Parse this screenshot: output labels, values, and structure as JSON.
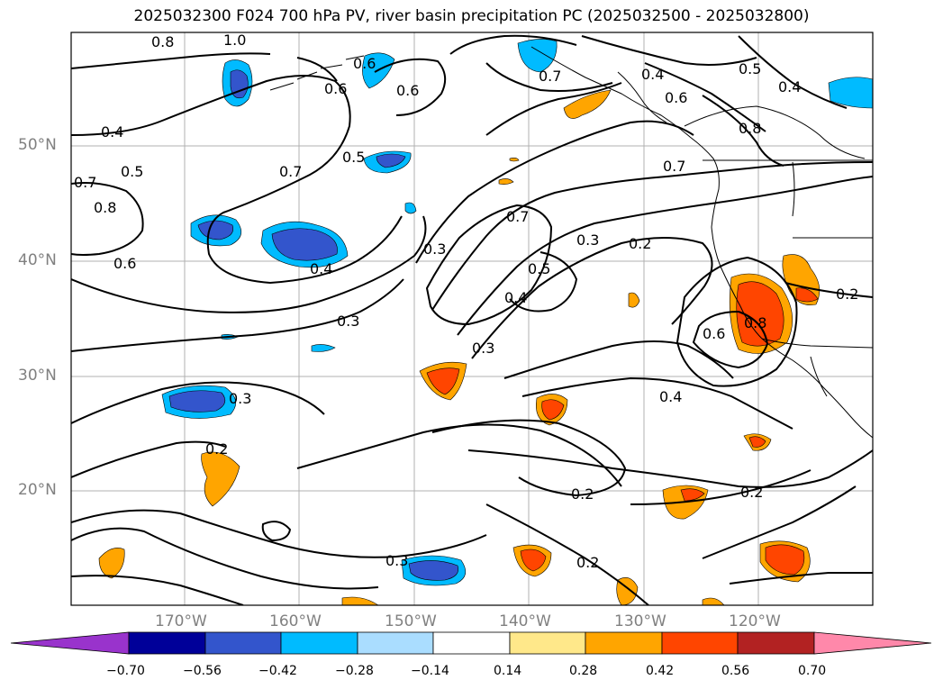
{
  "title": "2025032300 F024 700 hPa PV, river basin precipitation PC (2025032500 - 2025032800)",
  "lat_ticks": [
    "50°N",
    "40°N",
    "30°N",
    "20°N"
  ],
  "lon_ticks": [
    "170°W",
    "160°W",
    "150°W",
    "140°W",
    "130°W",
    "120°W"
  ],
  "colorbar": {
    "ticks": [
      "−0.70",
      "−0.56",
      "−0.42",
      "−0.28",
      "−0.14",
      "0.14",
      "0.28",
      "0.42",
      "0.56",
      "0.70"
    ],
    "colors": [
      "#9933cc",
      "#000099",
      "#3355cc",
      "#00bbff",
      "#aaddff",
      "#ffffff",
      "#ffe88a",
      "#ffa500",
      "#ff4500",
      "#b22222",
      "#ff88aa"
    ]
  },
  "contour_labels": [
    "0.8",
    "1.0",
    "0.6",
    "0.6",
    "0.4",
    "0.5",
    "0.7",
    "0.8",
    "0.6",
    "0.7",
    "0.5",
    "0.4",
    "0.3",
    "0.7",
    "0.3",
    "0.5",
    "0.4",
    "0.3",
    "0.3",
    "0.2",
    "0.6",
    "0.8",
    "0.4",
    "0.2",
    "0.2",
    "0.2",
    "0.2",
    "0.3",
    "0.7",
    "0.4",
    "0.5",
    "0.4",
    "0.6",
    "0.8",
    "0.7",
    "0.2",
    "0.6"
  ]
}
